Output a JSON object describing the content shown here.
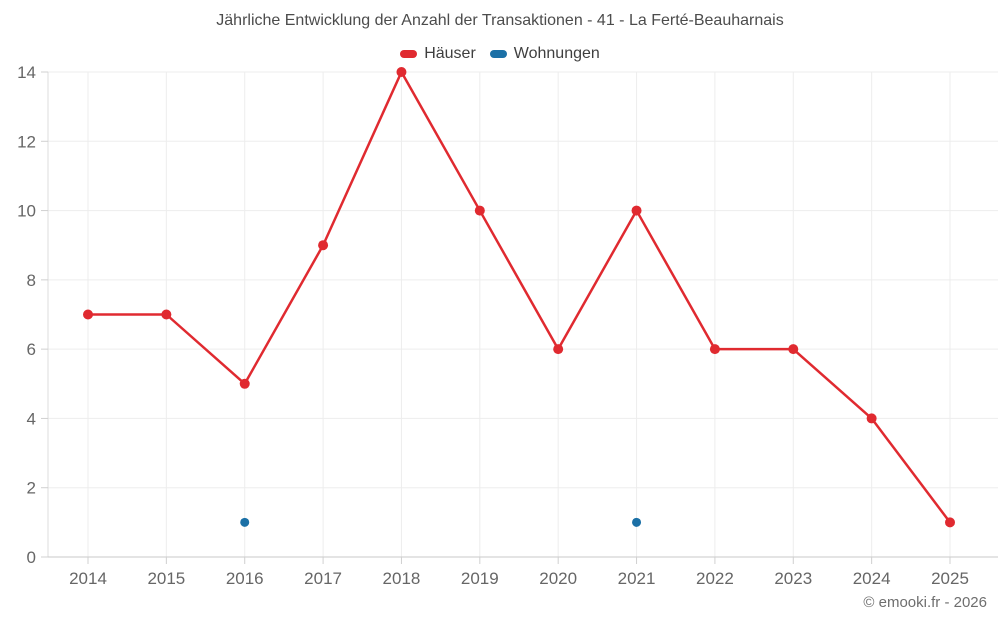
{
  "page": {
    "background": "#ffffff"
  },
  "chart_data": {
    "type": "line",
    "title": "Jährliche Entwicklung der Anzahl der Transaktionen - 41 - La Ferté-Beauharnais",
    "categories": [
      "2014",
      "2015",
      "2016",
      "2017",
      "2018",
      "2019",
      "2020",
      "2021",
      "2022",
      "2023",
      "2024",
      "2025"
    ],
    "series": [
      {
        "key": "haeuser",
        "name": "Häuser",
        "color": "#e02a30",
        "values": [
          7,
          7,
          5,
          9,
          14,
          10,
          6,
          10,
          6,
          6,
          4,
          1
        ]
      },
      {
        "key": "wohnungen",
        "name": "Wohnungen",
        "color": "#1b70a6",
        "values": [
          null,
          null,
          1,
          null,
          null,
          null,
          null,
          1,
          null,
          null,
          null,
          null
        ]
      }
    ],
    "xlabel": "",
    "ylabel": "",
    "ylim": [
      0,
      14
    ],
    "ytick_step": 2,
    "grid": true,
    "legend_position": "top",
    "copyright": "© emooki.fr - 2026",
    "colors": {
      "grid": "#ededed",
      "x_axis_line": "#c9c9c9",
      "y_axis_line": "#dcdcdc",
      "tick": "#d0d0d0",
      "axis_label": "#666666",
      "title": "#4c4c4c",
      "legend_label": "#3f3f3f",
      "copyright": "#6e6e6e"
    }
  }
}
